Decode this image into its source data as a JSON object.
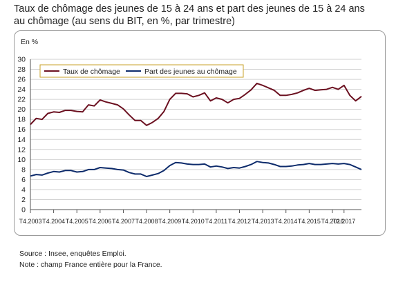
{
  "title_line1": "Taux de chômage des jeunes de 15 à 24 ans et part des jeunes de 15 à 24 ans",
  "title_line2": "au chômage (au sens du BIT, en %, par trimestre)",
  "source": "Source : Insee, enquêtes Emploi.",
  "note": "Note : champ France entière pour la France.",
  "chart_data": {
    "type": "line",
    "ylabel": "En %",
    "ylim": [
      0,
      30
    ],
    "yticks": [
      0,
      2,
      4,
      6,
      8,
      10,
      12,
      14,
      16,
      18,
      20,
      22,
      24,
      26,
      28,
      30
    ],
    "grid": "horizontal",
    "legend": "top-left",
    "x_tick_labels": [
      "T4.2003",
      "T4.2004",
      "T4.2005",
      "T4.2006",
      "T4.2007",
      "T4.2008",
      "T4.2009",
      "T4.2010",
      "T4.2011",
      "T4.2012",
      "T4.2013",
      "T4.2014",
      "T4.2015",
      "T4.2016",
      "T2.2017"
    ],
    "x_tick_index": [
      0,
      4,
      8,
      12,
      16,
      20,
      24,
      28,
      32,
      36,
      40,
      44,
      48,
      52,
      54
    ],
    "series": [
      {
        "name": "Taux de chômage",
        "color": "#6b1020",
        "values": [
          17.0,
          18.2,
          18.0,
          19.2,
          19.5,
          19.4,
          19.8,
          19.8,
          19.6,
          19.5,
          20.9,
          20.7,
          21.9,
          21.5,
          21.2,
          20.9,
          20.1,
          18.9,
          17.8,
          17.8,
          16.8,
          17.4,
          18.2,
          19.6,
          22.0,
          23.2,
          23.2,
          23.1,
          22.5,
          22.8,
          23.3,
          21.7,
          22.3,
          22.0,
          21.3,
          22.0,
          22.2,
          23.0,
          23.9,
          25.2,
          24.8,
          24.3,
          23.8,
          22.8,
          22.8,
          23.0,
          23.3,
          23.8,
          24.2,
          23.8,
          23.9,
          24.0,
          24.4,
          24.0,
          24.8,
          22.8,
          21.7,
          22.6
        ]
      },
      {
        "name": "Part des jeunes au chômage",
        "color": "#0d2b6b",
        "values": [
          6.7,
          7.0,
          6.9,
          7.3,
          7.6,
          7.5,
          7.8,
          7.8,
          7.5,
          7.6,
          8.0,
          8.0,
          8.4,
          8.3,
          8.2,
          8.0,
          7.9,
          7.4,
          7.1,
          7.1,
          6.6,
          6.9,
          7.2,
          7.8,
          8.8,
          9.4,
          9.3,
          9.1,
          9.0,
          9.0,
          9.1,
          8.5,
          8.7,
          8.5,
          8.2,
          8.4,
          8.3,
          8.6,
          9.0,
          9.6,
          9.4,
          9.3,
          9.0,
          8.6,
          8.6,
          8.7,
          8.9,
          9.0,
          9.2,
          9.0,
          9.0,
          9.1,
          9.2,
          9.1,
          9.2,
          9.0,
          8.5,
          8.0
        ]
      }
    ]
  }
}
